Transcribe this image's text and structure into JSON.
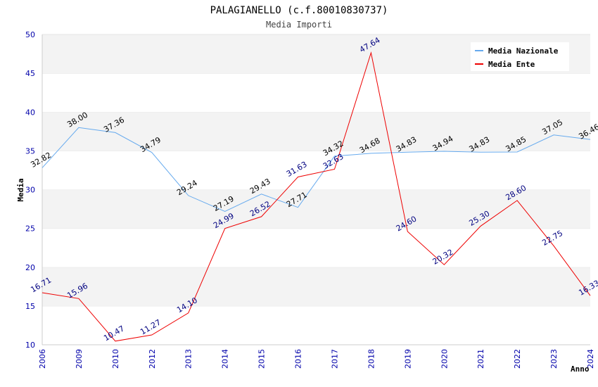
{
  "chart_data": {
    "type": "line",
    "title": "PALAGIANELLO (c.f.80010830737)",
    "subtitle": "Media Importi",
    "xlabel": "Anno",
    "ylabel": "Media",
    "ylim": [
      10,
      50
    ],
    "yticks": [
      10,
      15,
      20,
      25,
      30,
      35,
      40,
      45,
      50
    ],
    "grid": "horizontal alternating bands",
    "legend_position": "top-right",
    "categories": [
      "2006",
      "2009",
      "2010",
      "2012",
      "2013",
      "2014",
      "2015",
      "2016",
      "2017",
      "2018",
      "2019",
      "2020",
      "2021",
      "2022",
      "2023",
      "2024"
    ],
    "series": [
      {
        "name": "Media Nazionale",
        "color": "#66aaee",
        "values": [
          32.82,
          38.0,
          37.36,
          34.79,
          29.24,
          27.19,
          29.43,
          27.71,
          34.32,
          34.68,
          34.83,
          34.94,
          34.83,
          34.85,
          37.05,
          36.46
        ],
        "labels": [
          "32.82",
          "38.00",
          "37.36",
          "34.79",
          "29.24",
          "27.19",
          "29.43",
          "27.71",
          "34.32",
          "34.68",
          "34.83",
          "34.94",
          "34.83",
          "34.85",
          "37.05",
          "36.46"
        ]
      },
      {
        "name": "Media Ente",
        "color": "#ee0000",
        "values": [
          16.71,
          15.96,
          10.47,
          11.27,
          14.1,
          24.99,
          26.52,
          31.63,
          32.63,
          47.64,
          24.6,
          20.32,
          25.3,
          28.6,
          22.75,
          16.33
        ],
        "labels": [
          "16.71",
          "15.96",
          "10.47",
          "11.27",
          "14.10",
          "24.99",
          "26.52",
          "31.63",
          "32.63",
          "47.64",
          "24.60",
          "20.32",
          "25.30",
          "28.60",
          "22.75",
          "16.33"
        ]
      }
    ]
  }
}
